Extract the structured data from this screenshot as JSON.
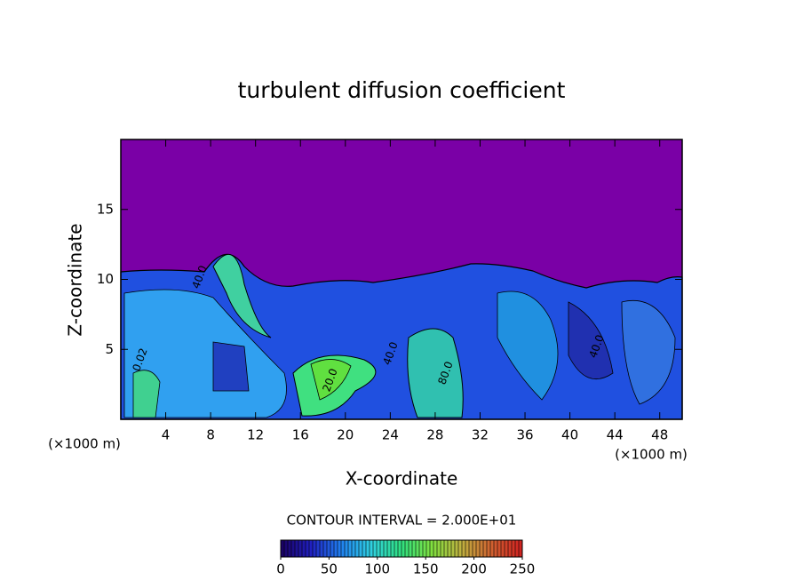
{
  "chart_data": {
    "type": "contour",
    "title": "turbulent diffusion coefficient",
    "x_label": "X-coordinate",
    "y_label": "Z-coordinate",
    "x_unit_left": "(×1000 m)",
    "x_unit_right": "(×1000 m)",
    "xlim": [
      0,
      50
    ],
    "xticks": [
      4,
      8,
      12,
      16,
      20,
      24,
      28,
      32,
      36,
      40,
      44,
      48
    ],
    "ylim": [
      0,
      20
    ],
    "yticks": [
      5,
      10,
      15
    ],
    "contour_interval_label": "CONTOUR INTERVAL = 2.000E+01",
    "contour_labels": [
      "40.0",
      "0.02",
      "20.0",
      "80.0",
      "40.0",
      "40.0"
    ],
    "colorbar": {
      "lim": [
        0,
        250
      ],
      "ticks": [
        0,
        50,
        100,
        150,
        200,
        250
      ],
      "colors": [
        "#1a0060",
        "#2020c0",
        "#2080f0",
        "#30d0e0",
        "#30e080",
        "#80e040",
        "#c0b040",
        "#d06030",
        "#d02020"
      ]
    }
  }
}
